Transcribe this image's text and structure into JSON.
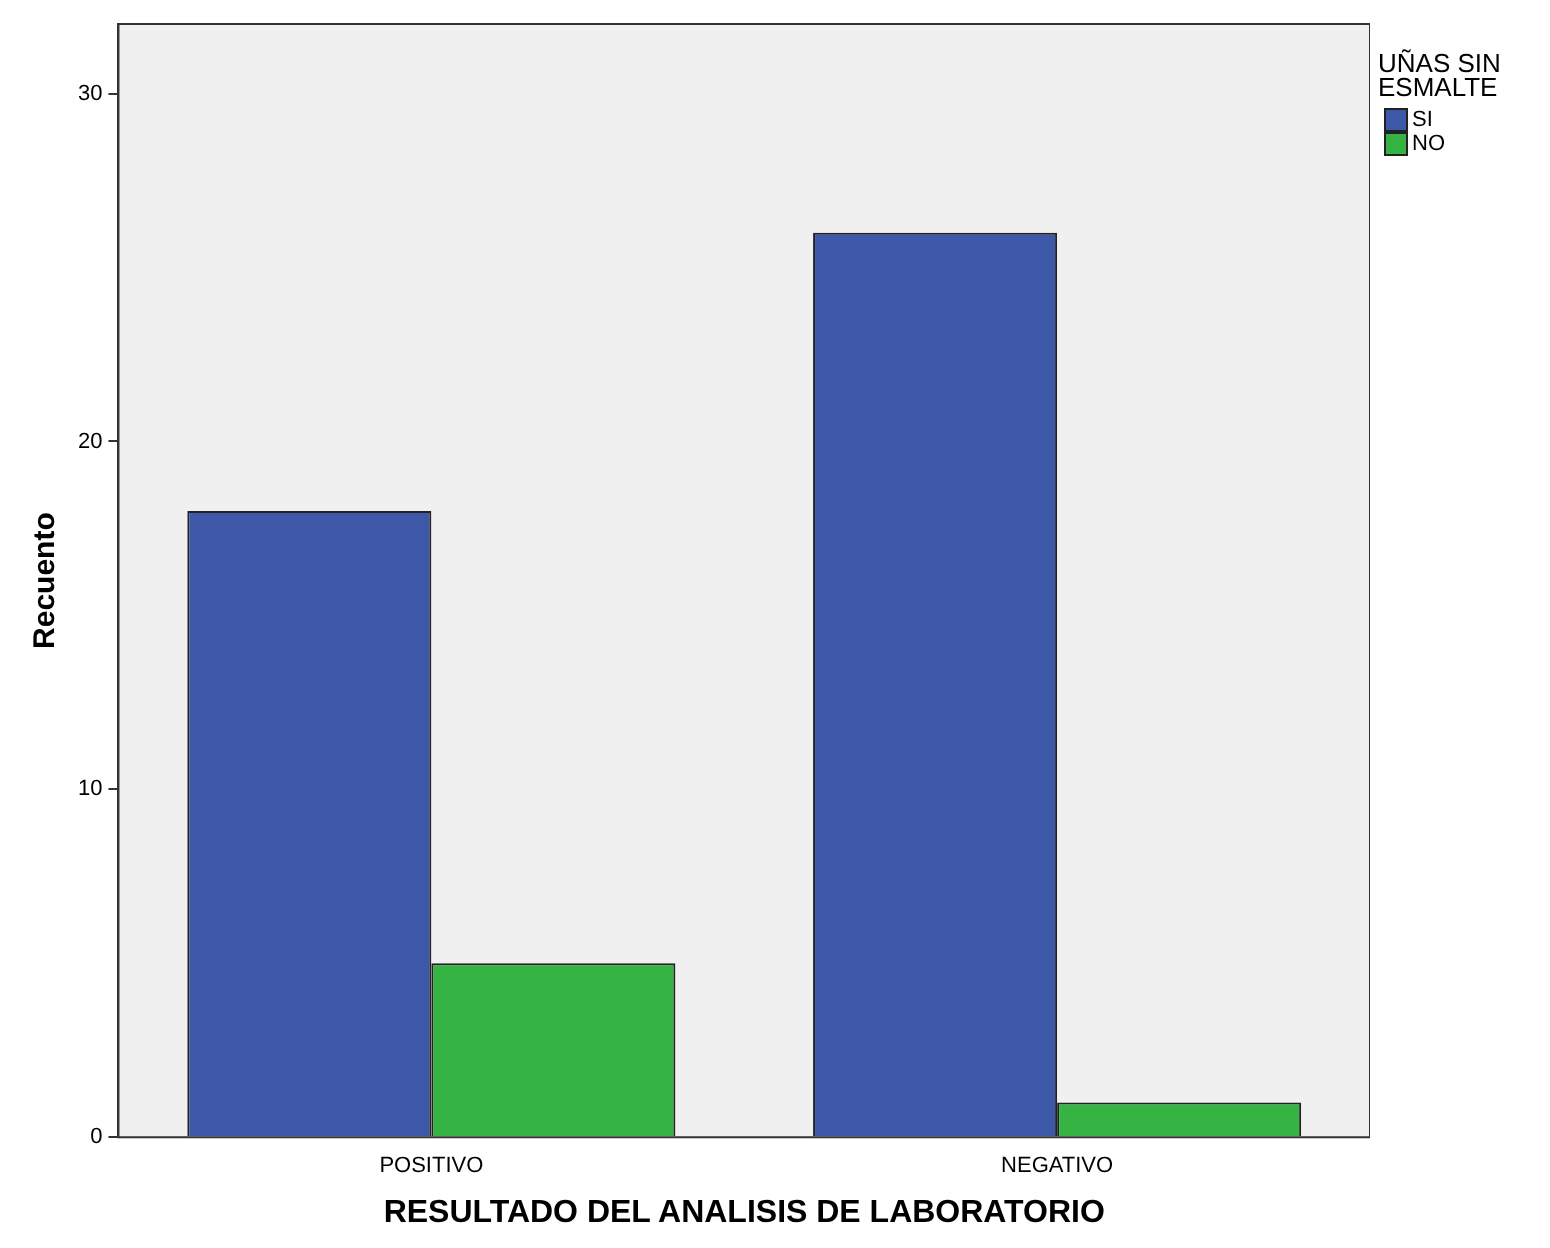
{
  "chart_data": {
    "type": "bar",
    "xlabel": "RESULTADO DEL ANALISIS DE LABORATORIO",
    "ylabel": "Recuento",
    "legend_title": "UÑAS SIN ESMALTE",
    "categories": [
      "POSITIVO",
      "NEGATIVO"
    ],
    "series": [
      {
        "name": "SI",
        "color": "#3e58a9",
        "values": [
          18,
          26
        ]
      },
      {
        "name": "NO",
        "color": "#35b443",
        "values": [
          5,
          1
        ]
      }
    ],
    "ylim": [
      0,
      32
    ],
    "yticks": [
      0,
      10,
      20,
      30
    ],
    "grid": false,
    "legend": "top right"
  }
}
